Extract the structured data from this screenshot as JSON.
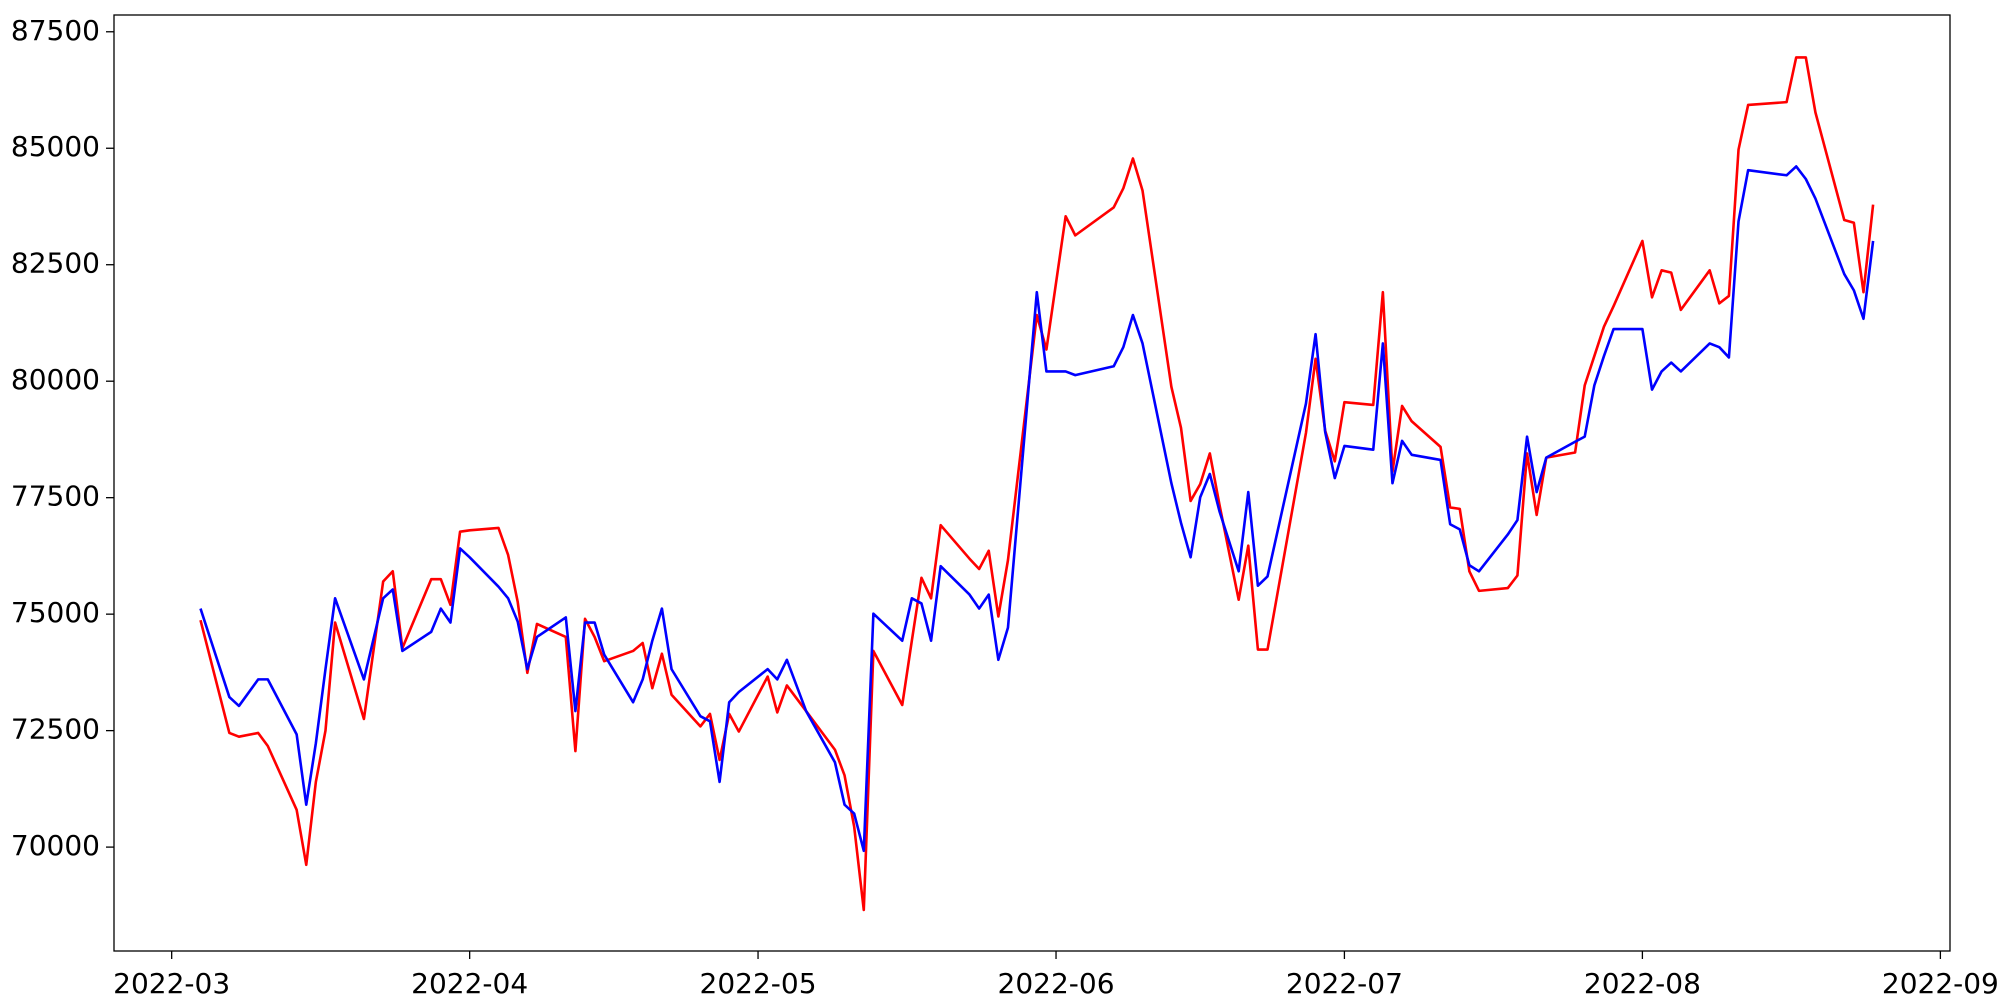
{
  "chart_data": {
    "type": "line",
    "x": [
      "2022-03-04",
      "2022-03-07",
      "2022-03-08",
      "2022-03-10",
      "2022-03-11",
      "2022-03-14",
      "2022-03-15",
      "2022-03-16",
      "2022-03-17",
      "2022-03-18",
      "2022-03-21",
      "2022-03-23",
      "2022-03-24",
      "2022-03-25",
      "2022-03-28",
      "2022-03-29",
      "2022-03-30",
      "2022-03-31",
      "2022-04-01",
      "2022-04-04",
      "2022-04-05",
      "2022-04-06",
      "2022-04-07",
      "2022-04-08",
      "2022-04-11",
      "2022-04-12",
      "2022-04-13",
      "2022-04-14",
      "2022-04-15",
      "2022-04-18",
      "2022-04-19",
      "2022-04-20",
      "2022-04-21",
      "2022-04-22",
      "2022-04-25",
      "2022-04-26",
      "2022-04-27",
      "2022-04-28",
      "2022-04-29",
      "2022-05-02",
      "2022-05-03",
      "2022-05-04",
      "2022-05-06",
      "2022-05-09",
      "2022-05-10",
      "2022-05-11",
      "2022-05-12",
      "2022-05-13",
      "2022-05-16",
      "2022-05-17",
      "2022-05-18",
      "2022-05-19",
      "2022-05-20",
      "2022-05-23",
      "2022-05-24",
      "2022-05-25",
      "2022-05-26",
      "2022-05-27",
      "2022-05-30",
      "2022-05-31",
      "2022-06-02",
      "2022-06-03",
      "2022-06-07",
      "2022-06-08",
      "2022-06-09",
      "2022-06-10",
      "2022-06-13",
      "2022-06-14",
      "2022-06-15",
      "2022-06-16",
      "2022-06-17",
      "2022-06-18",
      "2022-06-20",
      "2022-06-21",
      "2022-06-22",
      "2022-06-23",
      "2022-06-27",
      "2022-06-28",
      "2022-06-29",
      "2022-06-30",
      "2022-07-01",
      "2022-07-04",
      "2022-07-05",
      "2022-07-06",
      "2022-07-07",
      "2022-07-08",
      "2022-07-11",
      "2022-07-12",
      "2022-07-13",
      "2022-07-14",
      "2022-07-15",
      "2022-07-18",
      "2022-07-19",
      "2022-07-20",
      "2022-07-21",
      "2022-07-22",
      "2022-07-25",
      "2022-07-26",
      "2022-07-27",
      "2022-07-28",
      "2022-07-29",
      "2022-08-01",
      "2022-08-02",
      "2022-08-03",
      "2022-08-04",
      "2022-08-05",
      "2022-08-08",
      "2022-08-09",
      "2022-08-10",
      "2022-08-11",
      "2022-08-12",
      "2022-08-16",
      "2022-08-17",
      "2022-08-18",
      "2022-08-19",
      "2022-08-22",
      "2022-08-23",
      "2022-08-24",
      "2022-08-25"
    ],
    "series": [
      {
        "color": "#ff0000",
        "values": [
          74870,
          72450,
          72370,
          72450,
          72170,
          70800,
          69620,
          71400,
          72500,
          74820,
          72750,
          75700,
          75920,
          74270,
          75750,
          75750,
          75200,
          76770,
          76800,
          76850,
          76270,
          75260,
          73740,
          74790,
          74510,
          72060,
          74900,
          74510,
          73990,
          74210,
          74380,
          73410,
          74150,
          73270,
          72590,
          72860,
          71870,
          72860,
          72480,
          73660,
          72890,
          73470,
          72920,
          72090,
          71540,
          70440,
          68650,
          74210,
          73050,
          74430,
          75780,
          75340,
          76910,
          76190,
          75970,
          76360,
          74950,
          76160,
          81420,
          80680,
          83540,
          83130,
          83730,
          84140,
          84780,
          84090,
          79880,
          79000,
          77430,
          77790,
          78450,
          77350,
          75310,
          76470,
          74240,
          74240,
          78890,
          80480,
          78940,
          78280,
          79550,
          79490,
          81910,
          78060,
          79470,
          79140,
          78590,
          77290,
          77260,
          75920,
          75500,
          75560,
          75830,
          78450,
          77130,
          78360,
          78470,
          79910,
          80540,
          81170,
          81610,
          83010,
          81800,
          82380,
          82330,
          81530,
          82380,
          81670,
          81830,
          84970,
          85930,
          85990,
          86950,
          86950,
          85770,
          83460,
          83400,
          81910,
          83790
        ]
      },
      {
        "color": "#0000ff",
        "values": [
          75120,
          73220,
          73030,
          73600,
          73600,
          72420,
          70910,
          72230,
          73820,
          75340,
          73600,
          75340,
          75530,
          74210,
          74620,
          75120,
          74820,
          76410,
          76220,
          75590,
          75340,
          74840,
          73820,
          74510,
          74930,
          72920,
          74820,
          74820,
          74130,
          73110,
          73600,
          74430,
          75120,
          73820,
          72810,
          72700,
          71400,
          73110,
          73330,
          73820,
          73600,
          74020,
          72920,
          71820,
          70910,
          70720,
          69920,
          75010,
          74430,
          75340,
          75230,
          74430,
          76030,
          75420,
          75120,
          75420,
          74020,
          74710,
          81910,
          80210,
          80210,
          80130,
          80320,
          80730,
          81420,
          80810,
          77810,
          76960,
          76220,
          77510,
          78010,
          77210,
          75920,
          77620,
          75610,
          75810,
          79520,
          81010,
          78910,
          77920,
          78610,
          78530,
          80810,
          77810,
          78720,
          78420,
          78310,
          76930,
          76820,
          76050,
          75920,
          76710,
          77020,
          78810,
          77620,
          78360,
          78700,
          78810,
          79910,
          80540,
          81120,
          81120,
          79820,
          80210,
          80400,
          80210,
          80810,
          80730,
          80510,
          83430,
          84530,
          84420,
          84610,
          84340,
          83920,
          82300,
          81950,
          81340,
          83010
        ]
      }
    ],
    "xlim": [
      "2022-02-23",
      "2022-09-02"
    ],
    "xticks": [
      {
        "value": "2022-03-01",
        "label": "2022-03"
      },
      {
        "value": "2022-04-01",
        "label": "2022-04"
      },
      {
        "value": "2022-05-01",
        "label": "2022-05"
      },
      {
        "value": "2022-06-01",
        "label": "2022-06"
      },
      {
        "value": "2022-07-01",
        "label": "2022-07"
      },
      {
        "value": "2022-08-01",
        "label": "2022-08"
      },
      {
        "value": "2022-09-01",
        "label": "2022-09"
      }
    ],
    "ylim": [
      67770,
      87860
    ],
    "yticks": [
      70000,
      72500,
      75000,
      77500,
      80000,
      82500,
      85000,
      87500
    ],
    "grid": false
  }
}
